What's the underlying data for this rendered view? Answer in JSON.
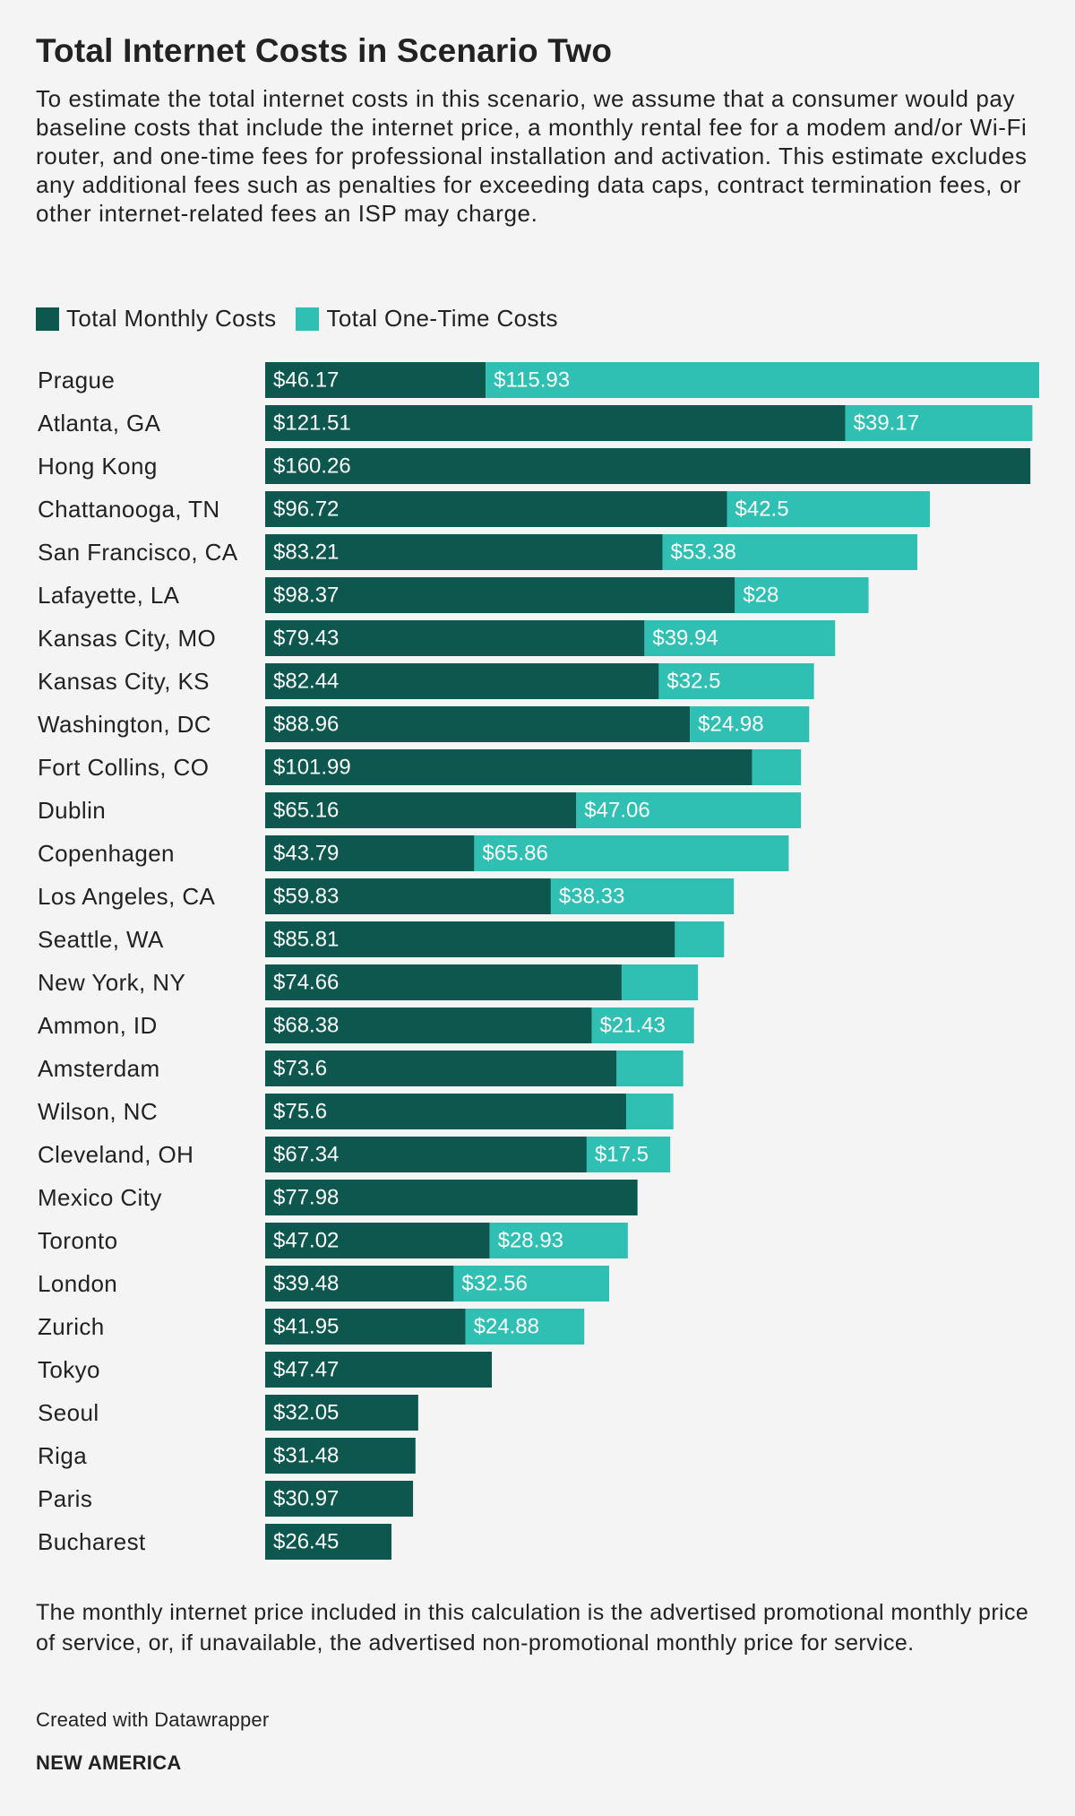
{
  "colors": {
    "monthly": "#0d574f",
    "onetime": "#2fbfb3",
    "background": "#f4f4f4"
  },
  "chart_data": {
    "type": "bar",
    "orientation": "horizontal",
    "stacked": true,
    "title": "Total Internet Costs in Scenario Two",
    "subtitle": "To estimate the total internet costs in this scenario, we assume that a consumer would pay baseline costs that include the internet price, a monthly rental fee for a modem and/or Wi-Fi router, and one-time fees for professional installation and activation. This estimate excludes any additional fees such as penalties for exceeding data caps, contract termination fees, or other internet-related fees an ISP may charge.",
    "legend": [
      "Total Monthly Costs",
      "Total One-Time Costs"
    ],
    "categories": [
      "Prague",
      "Atlanta, GA",
      "Hong Kong",
      "Chattanooga, TN",
      "San Francisco, CA",
      "Lafayette, LA",
      "Kansas City, MO",
      "Kansas City, KS",
      "Washington, DC",
      "Fort Collins, CO",
      "Dublin",
      "Copenhagen",
      "Los Angeles, CA",
      "Seattle, WA",
      "New York, NY",
      "Ammon, ID",
      "Amsterdam",
      "Wilson, NC",
      "Cleveland, OH",
      "Mexico City",
      "Toronto",
      "London",
      "Zurich",
      "Tokyo",
      "Seoul",
      "Riga",
      "Paris",
      "Bucharest"
    ],
    "series": [
      {
        "name": "Total Monthly Costs",
        "values": [
          46.17,
          121.51,
          160.26,
          96.72,
          83.21,
          98.37,
          79.43,
          82.44,
          88.96,
          101.99,
          65.16,
          43.79,
          59.83,
          85.81,
          74.66,
          68.38,
          73.6,
          75.6,
          67.34,
          77.98,
          47.02,
          39.48,
          41.95,
          47.47,
          32.05,
          31.48,
          30.97,
          26.45
        ],
        "labels": [
          "$46.17",
          "$121.51",
          "$160.26",
          "$96.72",
          "$83.21",
          "$98.37",
          "$79.43",
          "$82.44",
          "$88.96",
          "$101.99",
          "$65.16",
          "$43.79",
          "$59.83",
          "$85.81",
          "$74.66",
          "$68.38",
          "$73.6",
          "$75.6",
          "$67.34",
          "$77.98",
          "$47.02",
          "$39.48",
          "$41.95",
          "$47.47",
          "$32.05",
          "$31.48",
          "$30.97",
          "$26.45"
        ]
      },
      {
        "name": "Total One-Time Costs",
        "values": [
          115.93,
          39.17,
          0,
          42.5,
          53.38,
          28,
          39.94,
          32.5,
          24.98,
          10.24,
          47.06,
          65.86,
          38.33,
          10.3,
          15.98,
          21.43,
          13.95,
          9.9,
          17.5,
          0,
          28.93,
          32.56,
          24.88,
          0,
          0,
          0,
          0,
          0
        ],
        "labels": [
          "$115.93",
          "$39.17",
          "",
          "$42.5",
          "$53.38",
          "$28",
          "$39.94",
          "$32.5",
          "$24.98",
          "",
          "$47.06",
          "$65.86",
          "$38.33",
          "",
          "",
          "$21.43",
          "",
          "",
          "$17.5",
          "",
          "$28.93",
          "$32.56",
          "$24.88",
          "",
          "",
          "",
          "",
          ""
        ]
      }
    ],
    "xlim": [
      0,
      162.1
    ]
  },
  "footnote": "The monthly internet price included in this calculation is the advertised promotional monthly price of service, or, if unavailable, the advertised non-promotional monthly price for service.",
  "credit": "Created with Datawrapper",
  "brand": "NEW AMERICA"
}
